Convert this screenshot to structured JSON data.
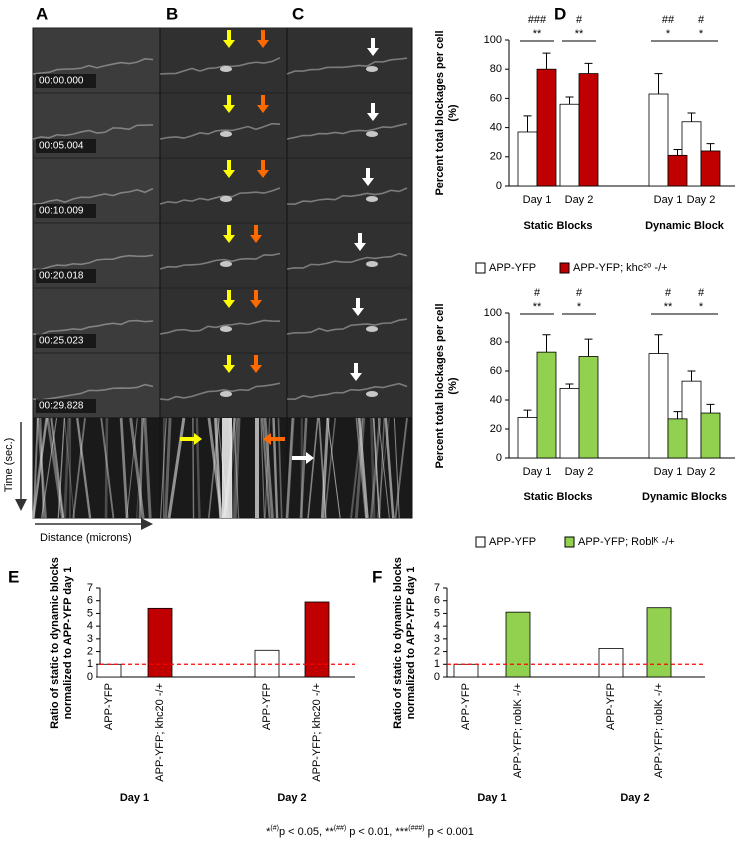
{
  "panel_labels": [
    "A",
    "B",
    "C",
    "D",
    "E",
    "F"
  ],
  "image_panels": {
    "timestamps": [
      "00:00.000",
      "00:05.004",
      "00:10.009",
      "00:20.018",
      "00:25.023",
      "00:29.828"
    ],
    "time_axis_label": "Time (sec.)",
    "distance_axis_label": "Distance (microns)"
  },
  "chart_data": [
    {
      "type": "bar",
      "ylabel": "Percent total blockages per cell (%)",
      "categories": [
        "Day 1",
        "Day 2",
        "Day 1",
        "Day 2"
      ],
      "group_labels": [
        "Static Blocks",
        "Dynamic Block"
      ],
      "series": [
        {
          "name": "APP-YFP",
          "color": "#ffffff",
          "values": [
            37,
            56,
            63,
            44
          ],
          "errors": [
            11,
            5,
            14,
            6
          ]
        },
        {
          "name": "APP-YFP; khc²⁰ -/+",
          "color": "#c00000",
          "values": [
            80,
            77,
            21,
            24
          ],
          "errors": [
            11,
            7,
            4,
            5
          ]
        }
      ],
      "significance": [
        [
          "###",
          "**"
        ],
        [
          "#",
          "**"
        ],
        [
          "##",
          "*"
        ],
        [
          "#",
          "*"
        ]
      ],
      "ylim": [
        0,
        100
      ],
      "yticks": [
        0,
        20,
        40,
        60,
        80,
        100
      ]
    },
    {
      "type": "bar",
      "ylabel": "Percent total blockages per cell (%)",
      "categories": [
        "Day 1",
        "Day 2",
        "Day 1",
        "Day 2"
      ],
      "group_labels": [
        "Static Blocks",
        "Dynamic Blocks"
      ],
      "series": [
        {
          "name": "APP-YFP",
          "color": "#ffffff",
          "values": [
            28,
            48,
            72,
            53
          ],
          "errors": [
            5,
            3,
            13,
            7
          ]
        },
        {
          "name": "APP-YFP; Roblᴷ -/+",
          "color": "#92d050",
          "values": [
            73,
            70,
            27,
            31
          ],
          "errors": [
            12,
            12,
            5,
            6
          ]
        }
      ],
      "significance": [
        [
          "#",
          "**"
        ],
        [
          "#",
          "*"
        ],
        [
          "#",
          "**"
        ],
        [
          "#",
          "*"
        ]
      ],
      "ylim": [
        0,
        100
      ],
      "yticks": [
        0,
        20,
        40,
        60,
        80,
        100
      ]
    },
    {
      "type": "bar",
      "ylabel": "Ratio of static to dynamic blocks normalized to APP-YFP day 1",
      "categories": [
        "APP-YFP",
        "APP-YFP; khc20 -/+",
        "APP-YFP",
        "APP-YFP; khc20 -/+"
      ],
      "group_labels": [
        "Day 1",
        "Day 2"
      ],
      "values": [
        1,
        5.4,
        2.1,
        5.9
      ],
      "colors": [
        "#ffffff",
        "#c00000",
        "#ffffff",
        "#c00000"
      ],
      "reference_line": 1,
      "reference_color": "#ff0000",
      "ylim": [
        0,
        7
      ],
      "yticks": [
        0,
        1,
        2,
        3,
        4,
        5,
        6,
        7
      ]
    },
    {
      "type": "bar",
      "ylabel": "Ratio of static to dynamic blocks normalized to APP-YFP day 1",
      "categories": [
        "APP-YFP",
        "APP-YFP; roblK -/+",
        "APP-YFP",
        "APP-YFP; roblK -/+"
      ],
      "group_labels": [
        "Day 1",
        "Day 2"
      ],
      "values": [
        1,
        5.1,
        2.25,
        5.45
      ],
      "colors": [
        "#ffffff",
        "#92d050",
        "#ffffff",
        "#92d050"
      ],
      "reference_line": 1,
      "reference_color": "#ff0000",
      "ylim": [
        0,
        7
      ],
      "yticks": [
        0,
        1,
        2,
        3,
        4,
        5,
        6,
        7
      ]
    }
  ],
  "footnote": [
    "*",
    "(#)",
    "p < 0.05, **",
    "(##)",
    " p < 0.01, ***",
    "(###)",
    " p < 0.001"
  ]
}
